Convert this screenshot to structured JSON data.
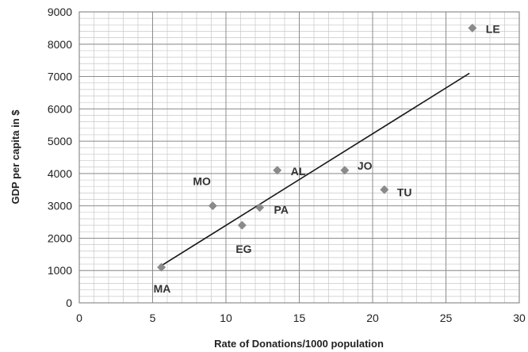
{
  "chart_data": {
    "type": "scatter",
    "xlabel": "Rate of Donations/1000 population",
    "ylabel": "GDP per capita in $",
    "xlim": [
      0,
      30
    ],
    "ylim": [
      0,
      9000
    ],
    "x_ticks": [
      "0",
      "5",
      "10",
      "15",
      "20",
      "25",
      "30"
    ],
    "y_ticks": [
      "0",
      "1000",
      "2000",
      "3000",
      "4000",
      "5000",
      "6000",
      "7000",
      "8000",
      "9000"
    ],
    "grid": true,
    "marker_color": "#8a8a8a",
    "line_color": "#1a1a1a",
    "points": [
      {
        "label": "MA",
        "x": 5.6,
        "y": 1100
      },
      {
        "label": "MO",
        "x": 9.1,
        "y": 3000
      },
      {
        "label": "EG",
        "x": 11.1,
        "y": 2400
      },
      {
        "label": "PA",
        "x": 12.3,
        "y": 2950
      },
      {
        "label": "AL",
        "x": 13.5,
        "y": 4100
      },
      {
        "label": "JO",
        "x": 18.1,
        "y": 4100
      },
      {
        "label": "TU",
        "x": 20.8,
        "y": 3500
      },
      {
        "label": "LE",
        "x": 26.8,
        "y": 8500
      }
    ],
    "trendline": {
      "x": [
        5.6,
        26.6
      ],
      "y": [
        1150,
        7100
      ]
    }
  }
}
